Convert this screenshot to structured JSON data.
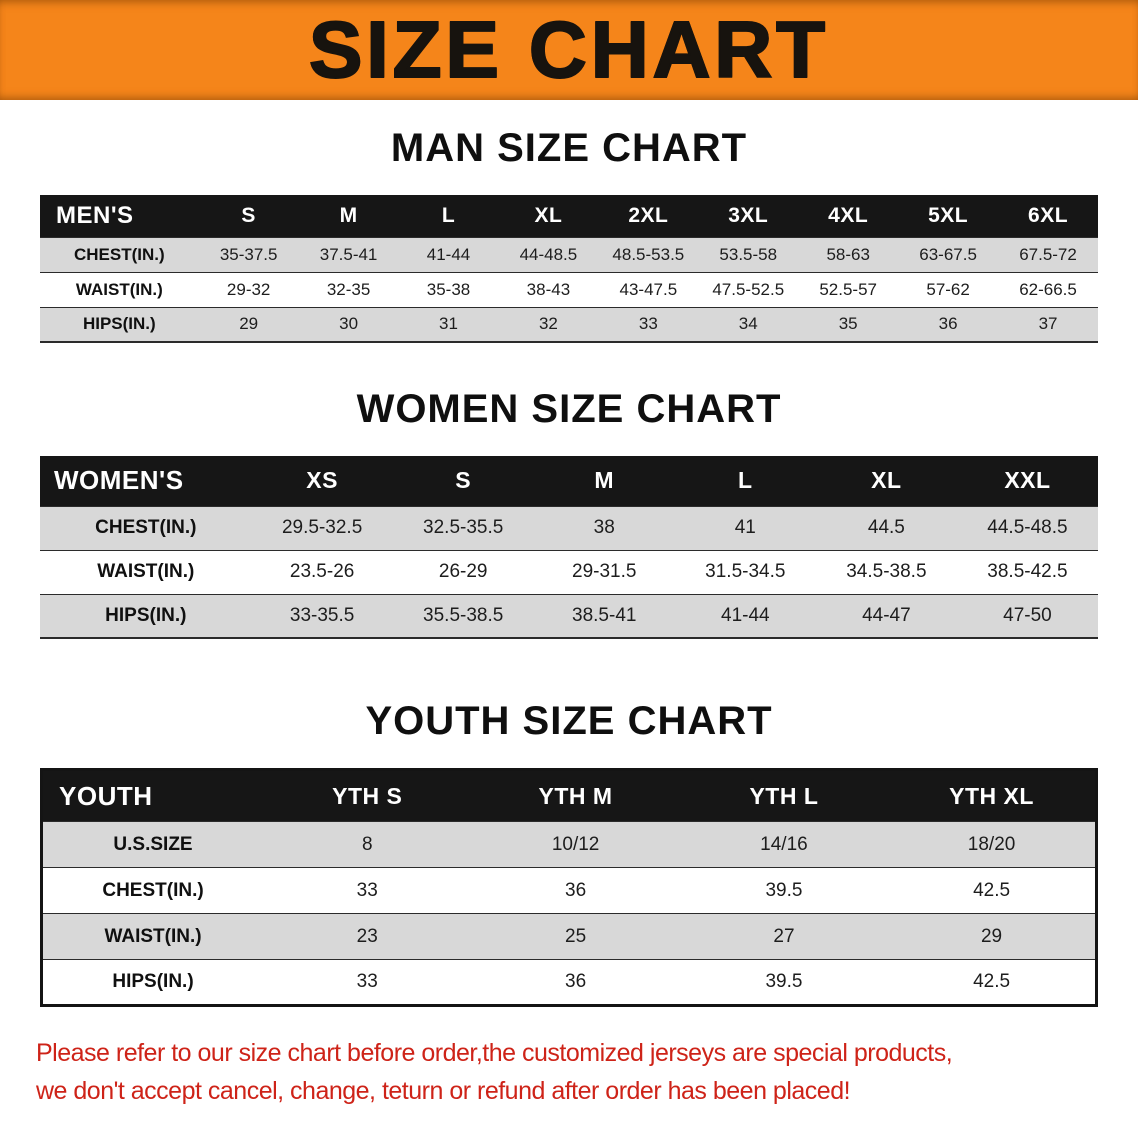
{
  "banner": {
    "title": "SIZE CHART"
  },
  "sections": [
    {
      "heading": "MAN SIZE CHART",
      "table": {
        "header": [
          "MEN'S",
          "S",
          "M",
          "L",
          "XL",
          "2XL",
          "3XL",
          "4XL",
          "5XL",
          "6XL"
        ],
        "rows": [
          {
            "label": "CHEST(IN.)",
            "values": [
              "35-37.5",
              "37.5-41",
              "41-44",
              "44-48.5",
              "48.5-53.5",
              "53.5-58",
              "58-63",
              "63-67.5",
              "67.5-72"
            ]
          },
          {
            "label": "WAIST(IN.)",
            "values": [
              "29-32",
              "32-35",
              "35-38",
              "38-43",
              "43-47.5",
              "47.5-52.5",
              "52.5-57",
              "57-62",
              "62-66.5"
            ]
          },
          {
            "label": "HIPS(IN.)",
            "values": [
              "29",
              "30",
              "31",
              "32",
              "33",
              "34",
              "35",
              "36",
              "37"
            ]
          }
        ]
      }
    },
    {
      "heading": "WOMEN SIZE CHART",
      "table": {
        "header": [
          "WOMEN'S",
          "XS",
          "S",
          "M",
          "L",
          "XL",
          "XXL"
        ],
        "rows": [
          {
            "label": "CHEST(IN.)",
            "values": [
              "29.5-32.5",
              "32.5-35.5",
              "38",
              "41",
              "44.5",
              "44.5-48.5"
            ]
          },
          {
            "label": "WAIST(IN.)",
            "values": [
              "23.5-26",
              "26-29",
              "29-31.5",
              "31.5-34.5",
              "34.5-38.5",
              "38.5-42.5"
            ]
          },
          {
            "label": "HIPS(IN.)",
            "values": [
              "33-35.5",
              "35.5-38.5",
              "38.5-41",
              "41-44",
              "44-47",
              "47-50"
            ]
          }
        ]
      }
    },
    {
      "heading": "YOUTH SIZE CHART",
      "table": {
        "header": [
          "YOUTH",
          "YTH S",
          "YTH M",
          "YTH L",
          "YTH XL"
        ],
        "rows": [
          {
            "label": "U.S.SIZE",
            "values": [
              "8",
              "10/12",
              "14/16",
              "18/20"
            ]
          },
          {
            "label": "CHEST(IN.)",
            "values": [
              "33",
              "36",
              "39.5",
              "42.5"
            ]
          },
          {
            "label": "WAIST(IN.)",
            "values": [
              "23",
              "25",
              "27",
              "29"
            ]
          },
          {
            "label": "HIPS(IN.)",
            "values": [
              "33",
              "36",
              "39.5",
              "42.5"
            ]
          }
        ]
      }
    }
  ],
  "footer": {
    "line1": "Please refer to our size chart before order,the customized jerseys are special products,",
    "line2": "we don't accept cancel, change, teturn or refund after order has been placed!"
  },
  "colors": {
    "banner_bg": "#f5851a",
    "header_bg": "#161616",
    "stripe": "#d8d8d8",
    "footer_red": "#ce2318"
  }
}
